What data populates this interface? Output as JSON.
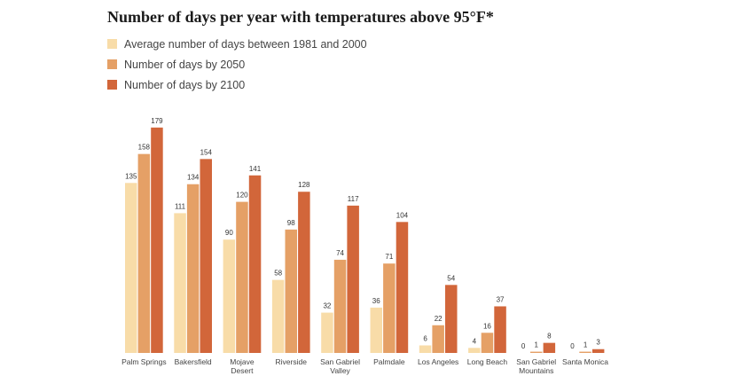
{
  "chart_data": {
    "type": "bar",
    "title": "Number of days per year with temperatures above 95°F*",
    "xlabel": "",
    "ylabel": "",
    "ylim": [
      0,
      190
    ],
    "grid": false,
    "legend_position": "top-left",
    "categories": [
      [
        "Palm Springs"
      ],
      [
        "Bakersfield"
      ],
      [
        "Mojave",
        "Desert"
      ],
      [
        "Riverside"
      ],
      [
        "San Gabriel",
        "Valley"
      ],
      [
        "Palmdale"
      ],
      [
        "Los Angeles"
      ],
      [
        "Long Beach"
      ],
      [
        "San Gabriel",
        "Mountains"
      ],
      [
        "Santa Monica"
      ]
    ],
    "series": [
      {
        "name": "Average number of days between 1981 and 2000",
        "color": "#f8dca8",
        "values": [
          135,
          111,
          90,
          58,
          32,
          36,
          6,
          4,
          0,
          0
        ]
      },
      {
        "name": "Number of days by 2050",
        "color": "#e5a066",
        "values": [
          158,
          134,
          120,
          98,
          74,
          71,
          22,
          16,
          1,
          1
        ]
      },
      {
        "name": "Number of days by 2100",
        "color": "#d2663a",
        "values": [
          179,
          154,
          141,
          128,
          117,
          104,
          54,
          37,
          8,
          3
        ]
      }
    ]
  }
}
